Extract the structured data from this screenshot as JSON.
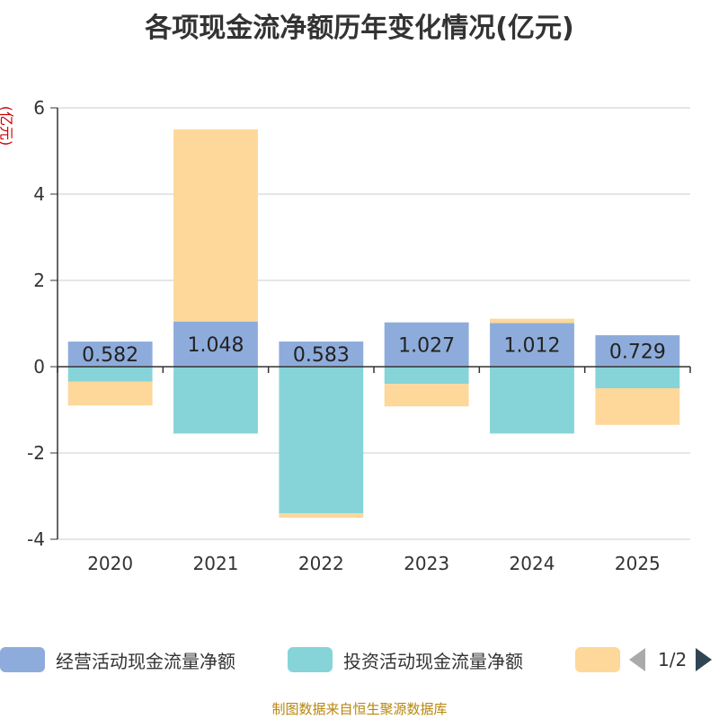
{
  "title": "各项现金流净额历年变化情况(亿元)",
  "unit_label": "(亿元)",
  "source": "制图数据来自恒生聚源数据库",
  "pager": {
    "text": "1/2"
  },
  "colors": {
    "operating": "#8eacdb",
    "investing": "#86d4d8",
    "financing": "#fdd89a",
    "axis": "#333333",
    "grid": "#cccccc"
  },
  "chart_data": {
    "type": "bar",
    "stacked": true,
    "title": "各项现金流净额历年变化情况(亿元)",
    "ylabel": "(亿元)",
    "ylim": [
      -4,
      6
    ],
    "yticks": [
      -4,
      -2,
      0,
      2,
      4,
      6
    ],
    "categories": [
      "2020",
      "2021",
      "2022",
      "2023",
      "2024",
      "2025"
    ],
    "series": [
      {
        "name": "经营活动现金流量净额",
        "values": [
          0.582,
          1.048,
          0.583,
          1.027,
          1.012,
          0.729
        ],
        "labels": [
          "0.582",
          "1.048",
          "0.583",
          "1.027",
          "1.012",
          "0.729"
        ]
      },
      {
        "name": "投资活动现金流量净额",
        "values": [
          -0.35,
          -1.55,
          -3.4,
          -0.4,
          -1.55,
          -0.5
        ]
      },
      {
        "name": "",
        "values": [
          -0.55,
          4.45,
          -0.1,
          -0.52,
          0.1,
          -0.85
        ]
      }
    ],
    "legend": [
      "经营活动现金流量净额",
      "投资活动现金流量净额",
      ""
    ]
  }
}
